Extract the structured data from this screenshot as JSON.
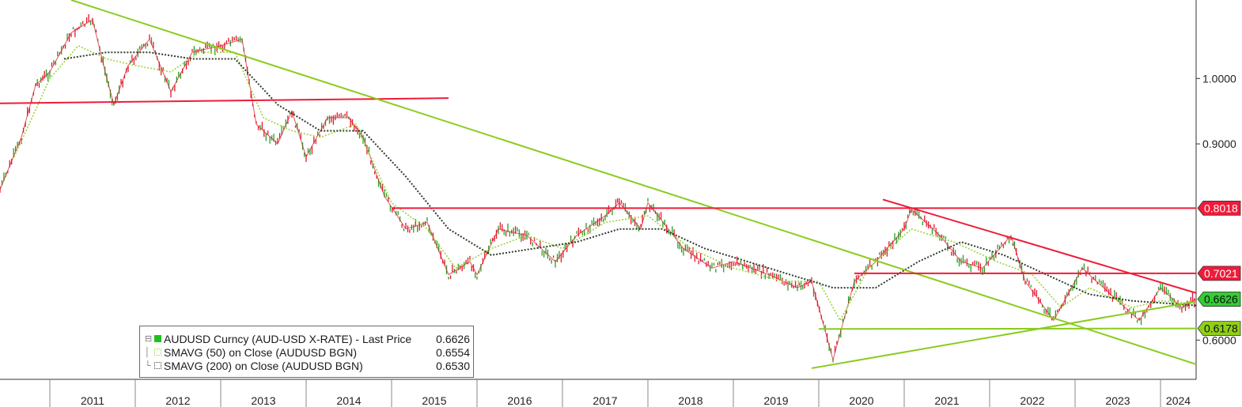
{
  "colors": {
    "price_up": "#22a022",
    "price_down": "#e0182e",
    "sma50": "#9ad43a",
    "sma200": "#2c3d2a",
    "trend_green": "#8acb1e",
    "trend_red": "#ee1c3a",
    "axis": "#333333"
  },
  "chart_data": {
    "type": "line",
    "x_range": [
      "2010-06-01",
      "2024-06-01"
    ],
    "y_range": [
      0.54,
      1.12
    ],
    "scale": "linear",
    "grid": false,
    "legend_position": "bottom-left",
    "x_labels": [
      "2011",
      "2012",
      "2013",
      "2014",
      "2015",
      "2016",
      "2017",
      "2018",
      "2019",
      "2020",
      "2021",
      "2022",
      "2023",
      "2024"
    ],
    "y_ticks": [
      {
        "value": 1.0,
        "label": "1.0000"
      },
      {
        "value": 0.9,
        "label": "0.9000"
      },
      {
        "value": 0.6,
        "label": "0.6000"
      }
    ],
    "series": [
      {
        "name": "AUDUSD Curncy (AUD-USD X-RATE) - Last Price",
        "last": "0.6626",
        "points": [
          [
            "2010-06-01",
            0.83
          ],
          [
            "2010-09-01",
            0.91
          ],
          [
            "2010-11-01",
            0.99
          ],
          [
            "2011-01-01",
            1.01
          ],
          [
            "2011-04-01",
            1.07
          ],
          [
            "2011-07-01",
            1.09
          ],
          [
            "2011-09-01",
            1.0
          ],
          [
            "2011-10-01",
            0.96
          ],
          [
            "2011-12-01",
            1.02
          ],
          [
            "2012-03-01",
            1.06
          ],
          [
            "2012-06-01",
            0.98
          ],
          [
            "2012-09-01",
            1.04
          ],
          [
            "2013-01-01",
            1.05
          ],
          [
            "2013-04-01",
            1.06
          ],
          [
            "2013-06-01",
            0.93
          ],
          [
            "2013-09-01",
            0.9
          ],
          [
            "2013-11-01",
            0.95
          ],
          [
            "2014-01-01",
            0.88
          ],
          [
            "2014-04-01",
            0.94
          ],
          [
            "2014-07-01",
            0.94
          ],
          [
            "2014-09-01",
            0.91
          ],
          [
            "2014-12-01",
            0.82
          ],
          [
            "2015-03-01",
            0.77
          ],
          [
            "2015-06-01",
            0.78
          ],
          [
            "2015-09-01",
            0.7
          ],
          [
            "2015-12-01",
            0.72
          ],
          [
            "2016-01-01",
            0.7
          ],
          [
            "2016-04-01",
            0.77
          ],
          [
            "2016-08-01",
            0.76
          ],
          [
            "2016-12-01",
            0.72
          ],
          [
            "2017-03-01",
            0.76
          ],
          [
            "2017-07-01",
            0.79
          ],
          [
            "2017-09-01",
            0.81
          ],
          [
            "2017-12-01",
            0.77
          ],
          [
            "2018-01-01",
            0.81
          ],
          [
            "2018-06-01",
            0.74
          ],
          [
            "2018-10-01",
            0.71
          ],
          [
            "2019-01-01",
            0.72
          ],
          [
            "2019-06-01",
            0.7
          ],
          [
            "2019-10-01",
            0.68
          ],
          [
            "2019-12-01",
            0.69
          ],
          [
            "2020-03-01",
            0.57
          ],
          [
            "2020-06-01",
            0.69
          ],
          [
            "2020-09-01",
            0.72
          ],
          [
            "2021-01-01",
            0.77
          ],
          [
            "2021-02-01",
            0.8
          ],
          [
            "2021-06-01",
            0.76
          ],
          [
            "2021-09-01",
            0.72
          ],
          [
            "2021-12-01",
            0.71
          ],
          [
            "2022-04-01",
            0.76
          ],
          [
            "2022-06-01",
            0.69
          ],
          [
            "2022-10-01",
            0.63
          ],
          [
            "2023-02-01",
            0.71
          ],
          [
            "2023-06-01",
            0.67
          ],
          [
            "2023-10-01",
            0.63
          ],
          [
            "2024-01-01",
            0.68
          ],
          [
            "2024-04-01",
            0.65
          ],
          [
            "2024-06-01",
            0.6626
          ]
        ]
      },
      {
        "name": "SMAVG (50)  on Close (AUDUSD BGN)",
        "last": "0.6554",
        "points": [
          [
            "2010-08-01",
            0.88
          ],
          [
            "2011-01-01",
            1.0
          ],
          [
            "2011-05-01",
            1.05
          ],
          [
            "2011-09-01",
            1.03
          ],
          [
            "2012-01-01",
            1.02
          ],
          [
            "2012-06-01",
            1.01
          ],
          [
            "2012-10-01",
            1.04
          ],
          [
            "2013-03-01",
            1.04
          ],
          [
            "2013-07-01",
            0.94
          ],
          [
            "2013-11-01",
            0.92
          ],
          [
            "2014-03-01",
            0.91
          ],
          [
            "2014-08-01",
            0.93
          ],
          [
            "2015-01-01",
            0.81
          ],
          [
            "2015-06-01",
            0.77
          ],
          [
            "2015-10-01",
            0.71
          ],
          [
            "2016-03-01",
            0.74
          ],
          [
            "2016-08-01",
            0.76
          ],
          [
            "2017-01-01",
            0.74
          ],
          [
            "2017-07-01",
            0.78
          ],
          [
            "2018-01-01",
            0.79
          ],
          [
            "2018-07-01",
            0.74
          ],
          [
            "2019-01-01",
            0.71
          ],
          [
            "2019-08-01",
            0.69
          ],
          [
            "2020-01-01",
            0.69
          ],
          [
            "2020-04-01",
            0.63
          ],
          [
            "2020-08-01",
            0.71
          ],
          [
            "2021-02-01",
            0.77
          ],
          [
            "2021-08-01",
            0.75
          ],
          [
            "2022-02-01",
            0.72
          ],
          [
            "2022-07-01",
            0.7
          ],
          [
            "2022-11-01",
            0.65
          ],
          [
            "2023-03-01",
            0.68
          ],
          [
            "2023-09-01",
            0.65
          ],
          [
            "2024-01-01",
            0.66
          ],
          [
            "2024-06-01",
            0.6554
          ]
        ]
      },
      {
        "name": "SMAVG (200)  on Close (AUDUSD BGN)",
        "last": "0.6530",
        "points": [
          [
            "2011-03-01",
            1.03
          ],
          [
            "2011-09-01",
            1.04
          ],
          [
            "2012-03-01",
            1.04
          ],
          [
            "2012-09-01",
            1.03
          ],
          [
            "2013-03-01",
            1.03
          ],
          [
            "2013-09-01",
            0.96
          ],
          [
            "2014-03-01",
            0.92
          ],
          [
            "2014-09-01",
            0.92
          ],
          [
            "2015-03-01",
            0.85
          ],
          [
            "2015-09-01",
            0.77
          ],
          [
            "2016-03-01",
            0.73
          ],
          [
            "2016-09-01",
            0.74
          ],
          [
            "2017-03-01",
            0.75
          ],
          [
            "2017-09-01",
            0.77
          ],
          [
            "2018-03-01",
            0.77
          ],
          [
            "2018-09-01",
            0.74
          ],
          [
            "2019-03-01",
            0.72
          ],
          [
            "2019-09-01",
            0.7
          ],
          [
            "2020-03-01",
            0.68
          ],
          [
            "2020-09-01",
            0.68
          ],
          [
            "2021-03-01",
            0.72
          ],
          [
            "2021-09-01",
            0.75
          ],
          [
            "2022-03-01",
            0.73
          ],
          [
            "2022-09-01",
            0.7
          ],
          [
            "2023-03-01",
            0.67
          ],
          [
            "2023-09-01",
            0.66
          ],
          [
            "2024-06-01",
            0.653
          ]
        ]
      }
    ],
    "trend_lines": [
      {
        "color": "red",
        "from": [
          "2010-06-01",
          0.962
        ],
        "to": [
          "2015-09-01",
          0.97
        ]
      },
      {
        "color": "green",
        "from": [
          "2011-04-01",
          1.12
        ],
        "to": [
          "2024-06-01",
          0.563
        ]
      },
      {
        "color": "red",
        "from": [
          "2015-01-01",
          0.8018
        ],
        "to": [
          "2024-06-01",
          0.8018
        ]
      },
      {
        "color": "red",
        "from": [
          "2020-06-01",
          0.7021
        ],
        "to": [
          "2024-06-01",
          0.7021
        ]
      },
      {
        "color": "red",
        "from": [
          "2020-10-01",
          0.815
        ],
        "to": [
          "2024-06-01",
          0.672
        ]
      },
      {
        "color": "green",
        "from": [
          "2020-01-01",
          0.617
        ],
        "to": [
          "2024-06-01",
          0.6178
        ]
      },
      {
        "color": "green",
        "from": [
          "2019-12-01",
          0.557
        ],
        "to": [
          "2024-06-01",
          0.659
        ]
      }
    ],
    "price_tags": [
      {
        "label": "0.8018",
        "value": 0.8018,
        "color": "red"
      },
      {
        "label": "0.7021",
        "value": 0.7021,
        "color": "red"
      },
      {
        "label": "0.6626",
        "value": 0.6626,
        "color": "green"
      },
      {
        "label": "0.6178",
        "value": 0.6178,
        "color": "olive"
      }
    ]
  },
  "legend": {
    "rows": [
      {
        "tree": "⊟",
        "name": "AUDUSD Curncy (AUD-USD X-RATE) - Last Price",
        "value": "0.6626"
      },
      {
        "tree": "│",
        "name": "SMAVG (50)  on Close (AUDUSD BGN)",
        "value": "0.6554"
      },
      {
        "tree": "└",
        "name": "SMAVG (200)  on Close (AUDUSD BGN)",
        "value": "0.6530"
      }
    ]
  }
}
